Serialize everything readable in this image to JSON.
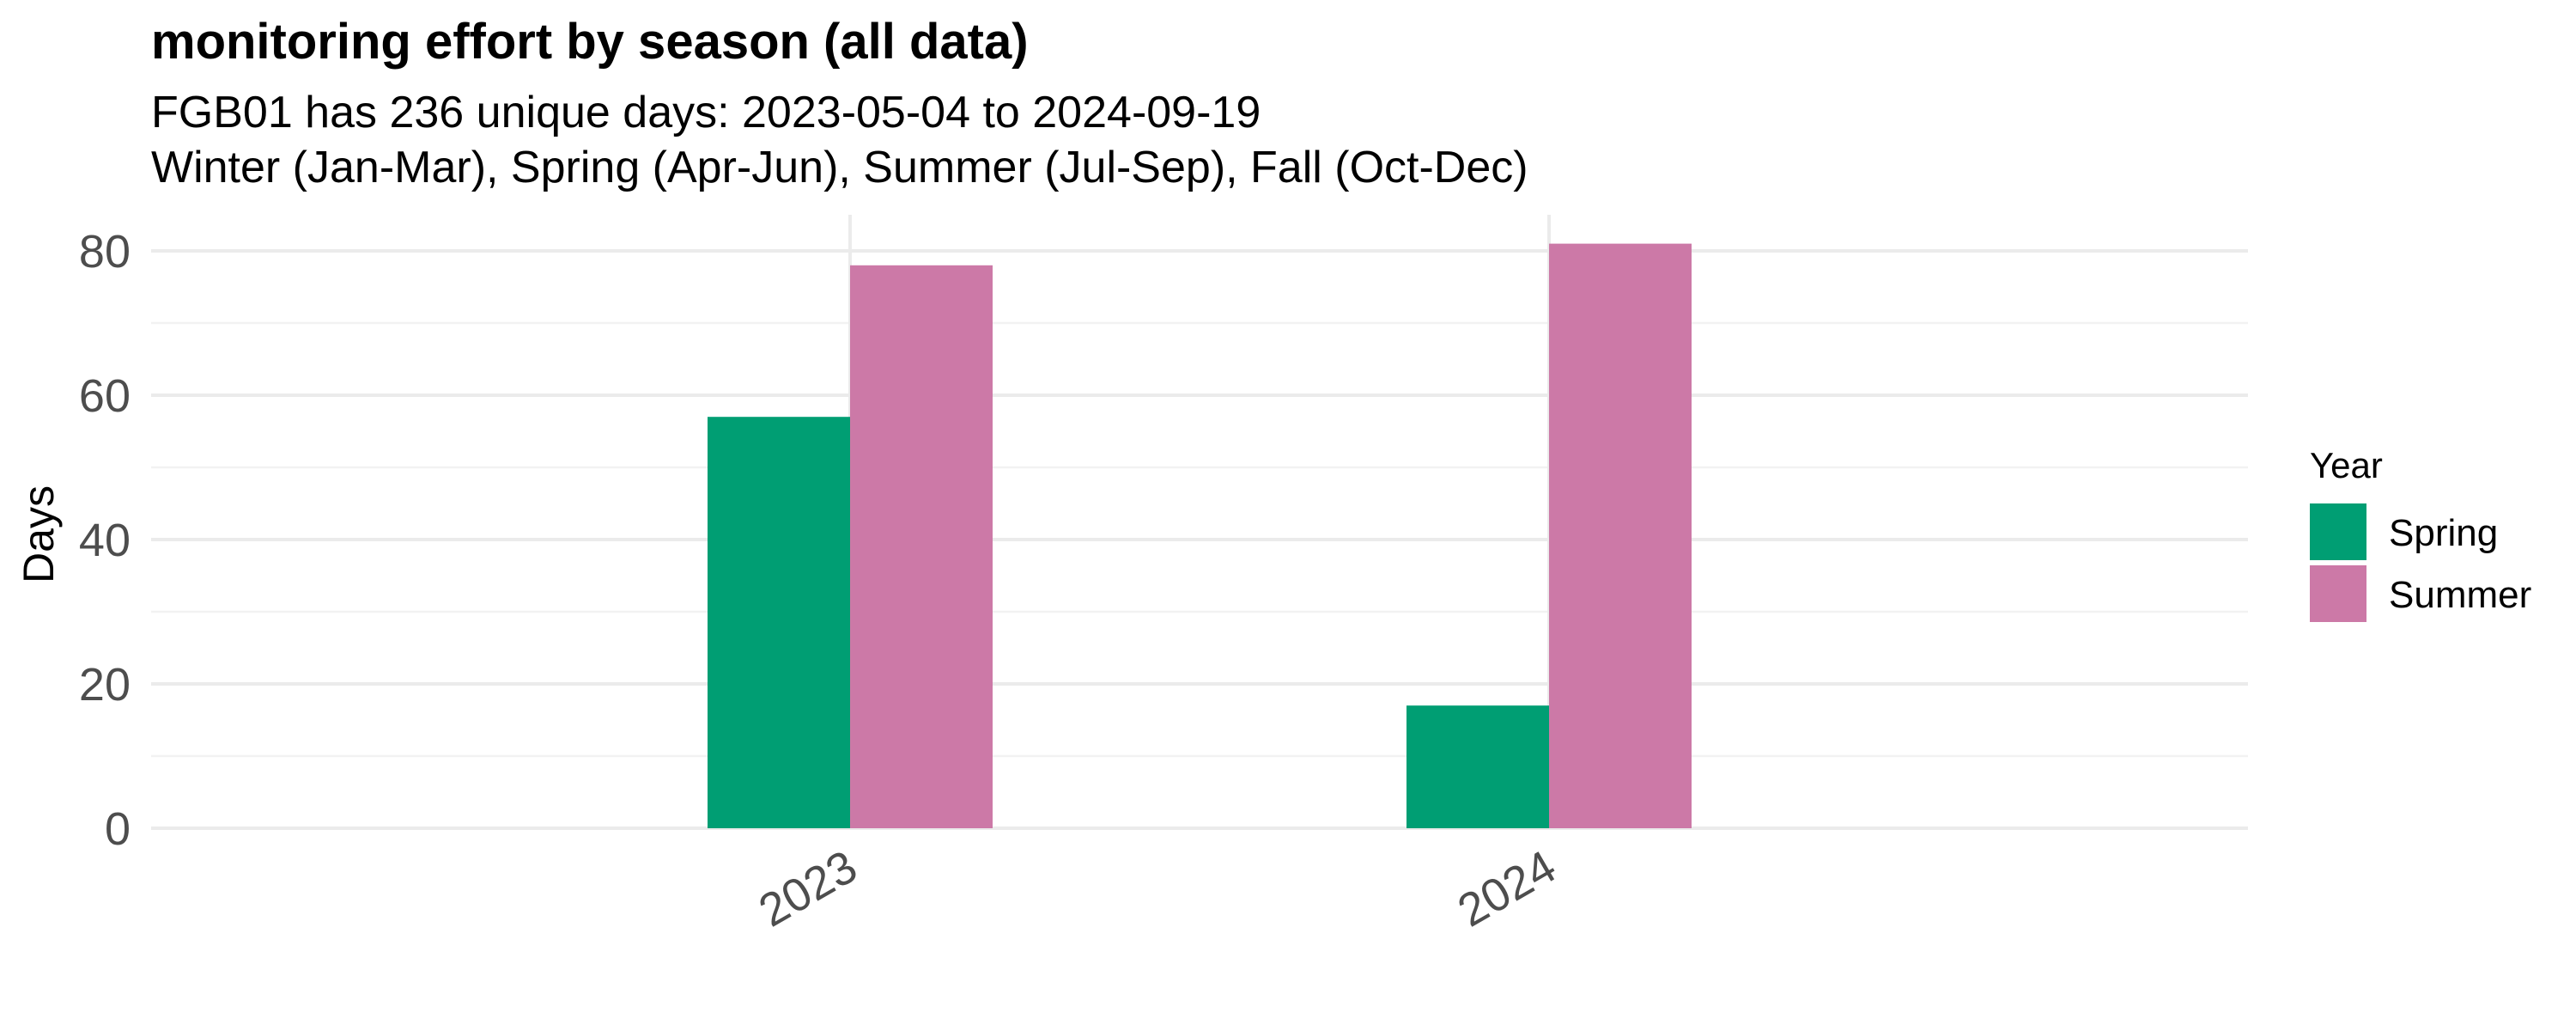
{
  "chart_data": {
    "type": "bar",
    "title": "monitoring effort by season (all data)",
    "subtitle_lines": [
      "FGB01 has 236 unique days: 2023-05-04 to 2024-09-19",
      "Winter (Jan-Mar), Spring (Apr-Jun), Summer (Jul-Sep), Fall (Oct-Dec)"
    ],
    "xlabel": "",
    "ylabel": "Days",
    "categories": [
      "2023",
      "2024"
    ],
    "series": [
      {
        "name": "Spring",
        "values": [
          57,
          17
        ],
        "color": "#009E73"
      },
      {
        "name": "Summer",
        "values": [
          78,
          81
        ],
        "color": "#CC79A7"
      }
    ],
    "ylim": [
      0,
      85
    ],
    "yticks": [
      0,
      20,
      40,
      60,
      80
    ],
    "grid": true,
    "legend": {
      "title": "Year",
      "placement": "right"
    }
  }
}
